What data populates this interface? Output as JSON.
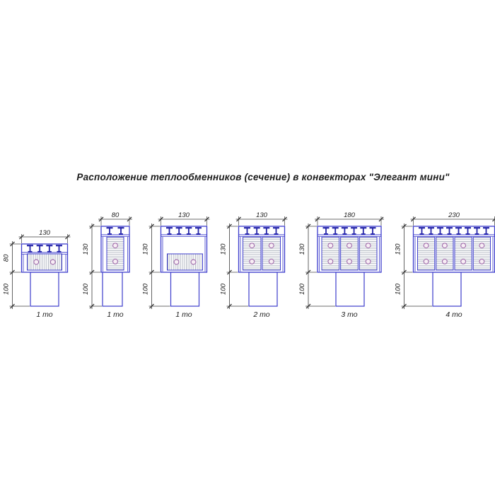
{
  "title": "Расположение теплообменников (сечение) в конвекторах \"Элегант мини\"",
  "colors": {
    "line": "#3d3dcc",
    "grille": "#2424a8",
    "hatch": "#9aa0ae",
    "tube_stroke": "#a06cab",
    "tube_fill": "#f8eef5",
    "dim": "#3c3c3c",
    "text": "#222222"
  },
  "diagrams": [
    {
      "name": "section-130x80-1to",
      "label": "1 то",
      "width_label": "130",
      "height_label": "80",
      "base_label": "100",
      "width_mm": 130,
      "height_mm": 80,
      "base_mm": 100,
      "teeth": 4,
      "arrangement": "horizontal",
      "exchanger_count": 1,
      "tubes_per_exchanger": 2
    },
    {
      "name": "section-80x130-1to",
      "label": "1 то",
      "width_label": "80",
      "height_label": "130",
      "base_label": "100",
      "width_mm": 80,
      "height_mm": 130,
      "base_mm": 100,
      "teeth": 2,
      "arrangement": "vertical",
      "exchanger_count": 1,
      "tubes_per_exchanger": 2
    },
    {
      "name": "section-130x130-1to",
      "label": "1 то",
      "width_label": "130",
      "height_label": "130",
      "base_label": "100",
      "width_mm": 130,
      "height_mm": 130,
      "base_mm": 100,
      "teeth": 4,
      "arrangement": "horizontal-low",
      "exchanger_count": 1,
      "tubes_per_exchanger": 2
    },
    {
      "name": "section-130x130-2to",
      "label": "2 то",
      "width_label": "130",
      "height_label": "130",
      "base_label": "100",
      "width_mm": 130,
      "height_mm": 130,
      "base_mm": 100,
      "teeth": 4,
      "arrangement": "vertical",
      "exchanger_count": 2,
      "tubes_per_exchanger": 2
    },
    {
      "name": "section-180x130-3to",
      "label": "3 то",
      "width_label": "180",
      "height_label": "130",
      "base_label": "100",
      "width_mm": 180,
      "height_mm": 130,
      "base_mm": 100,
      "teeth": 6,
      "arrangement": "vertical",
      "exchanger_count": 3,
      "tubes_per_exchanger": 2
    },
    {
      "name": "section-230x130-4to",
      "label": "4 то",
      "width_label": "230",
      "height_label": "130",
      "base_label": "100",
      "width_mm": 230,
      "height_mm": 130,
      "base_mm": 100,
      "teeth": 8,
      "arrangement": "vertical",
      "exchanger_count": 4,
      "tubes_per_exchanger": 2
    }
  ]
}
